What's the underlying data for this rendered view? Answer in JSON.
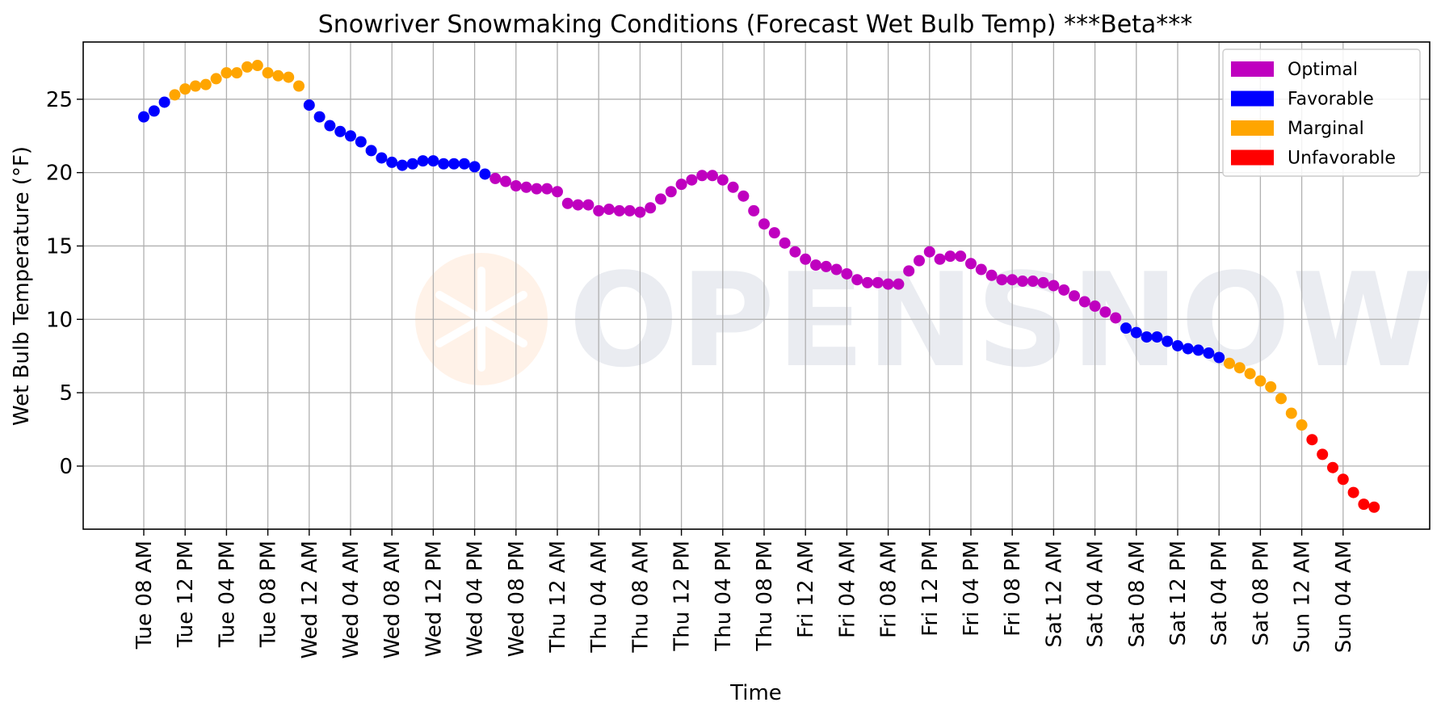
{
  "chart_data": {
    "type": "scatter",
    "title": "Snowriver Snowmaking Conditions (Forecast Wet Bulb Temp) ***Beta***",
    "xlabel": "Time",
    "ylabel": "Wet Bulb Temperature (°F)",
    "ylim": [
      -4.3,
      28.9
    ],
    "yticks": [
      0,
      5,
      10,
      15,
      20,
      25
    ],
    "grid": true,
    "legend_position": "top-right",
    "watermark": "OPENSNOW",
    "categories": [
      "Optimal",
      "Favorable",
      "Marginal",
      "Unfavorable"
    ],
    "colors": {
      "Optimal": "#bf00bf",
      "Favorable": "#0000ff",
      "Marginal": "#ffa500",
      "Unfavorable": "#ff0000"
    },
    "xtick_labels": [
      "Tue 08 AM",
      "Tue 12 PM",
      "Tue 04 PM",
      "Tue 08 PM",
      "Wed 12 AM",
      "Wed 04 AM",
      "Wed 08 AM",
      "Wed 12 PM",
      "Wed 04 PM",
      "Wed 08 PM",
      "Thu 12 AM",
      "Thu 04 AM",
      "Thu 08 AM",
      "Thu 12 PM",
      "Thu 04 PM",
      "Thu 08 PM",
      "Fri 12 AM",
      "Fri 04 AM",
      "Fri 08 AM",
      "Fri 12 PM",
      "Fri 04 PM",
      "Fri 08 PM",
      "Sat 12 AM",
      "Sat 04 AM",
      "Sat 08 AM",
      "Sat 12 PM",
      "Sat 04 PM",
      "Sat 08 PM",
      "Sun 12 AM",
      "Sun 04 AM"
    ],
    "x_start": "Tue 08 AM",
    "x_step": "1 hour",
    "y": [
      23.8,
      24.2,
      24.8,
      25.3,
      25.7,
      25.9,
      26.0,
      26.4,
      26.8,
      26.8,
      27.2,
      27.3,
      26.8,
      26.6,
      26.5,
      25.9,
      24.6,
      23.8,
      23.2,
      22.8,
      22.5,
      22.1,
      21.5,
      21.0,
      20.7,
      20.5,
      20.6,
      20.8,
      20.8,
      20.6,
      20.6,
      20.6,
      20.4,
      19.9,
      19.6,
      19.4,
      19.1,
      19.0,
      18.9,
      18.9,
      18.7,
      17.9,
      17.8,
      17.8,
      17.4,
      17.5,
      17.4,
      17.4,
      17.3,
      17.6,
      18.2,
      18.7,
      19.2,
      19.5,
      19.8,
      19.8,
      19.5,
      19.0,
      18.4,
      17.4,
      16.5,
      15.9,
      15.2,
      14.6,
      14.1,
      13.7,
      13.6,
      13.4,
      13.1,
      12.7,
      12.5,
      12.5,
      12.4,
      12.4,
      13.3,
      14.0,
      14.6,
      14.1,
      14.3,
      14.3,
      13.8,
      13.4,
      13.0,
      12.7,
      12.7,
      12.6,
      12.6,
      12.5,
      12.3,
      12.0,
      11.6,
      11.2,
      10.9,
      10.5,
      10.1,
      9.4,
      9.1,
      8.8,
      8.8,
      8.5,
      8.2,
      8.0,
      7.9,
      7.7,
      7.4,
      7.0,
      6.7,
      6.3,
      5.8,
      5.4,
      4.6,
      3.6,
      2.8,
      1.8,
      0.8,
      -0.1,
      -0.9,
      -1.8,
      -2.6,
      -2.8
    ],
    "condition": [
      "Favorable",
      "Favorable",
      "Favorable",
      "Marginal",
      "Marginal",
      "Marginal",
      "Marginal",
      "Marginal",
      "Marginal",
      "Marginal",
      "Marginal",
      "Marginal",
      "Marginal",
      "Marginal",
      "Marginal",
      "Marginal",
      "Favorable",
      "Favorable",
      "Favorable",
      "Favorable",
      "Favorable",
      "Favorable",
      "Favorable",
      "Favorable",
      "Favorable",
      "Favorable",
      "Favorable",
      "Favorable",
      "Favorable",
      "Favorable",
      "Favorable",
      "Favorable",
      "Favorable",
      "Favorable",
      "Optimal",
      "Optimal",
      "Optimal",
      "Optimal",
      "Optimal",
      "Optimal",
      "Optimal",
      "Optimal",
      "Optimal",
      "Optimal",
      "Optimal",
      "Optimal",
      "Optimal",
      "Optimal",
      "Optimal",
      "Optimal",
      "Optimal",
      "Optimal",
      "Optimal",
      "Optimal",
      "Optimal",
      "Optimal",
      "Optimal",
      "Optimal",
      "Optimal",
      "Optimal",
      "Optimal",
      "Optimal",
      "Optimal",
      "Optimal",
      "Optimal",
      "Optimal",
      "Optimal",
      "Optimal",
      "Optimal",
      "Optimal",
      "Optimal",
      "Optimal",
      "Optimal",
      "Optimal",
      "Optimal",
      "Optimal",
      "Optimal",
      "Optimal",
      "Optimal",
      "Optimal",
      "Optimal",
      "Optimal",
      "Optimal",
      "Optimal",
      "Optimal",
      "Optimal",
      "Optimal",
      "Optimal",
      "Optimal",
      "Optimal",
      "Optimal",
      "Optimal",
      "Optimal",
      "Optimal",
      "Optimal",
      "Favorable",
      "Favorable",
      "Favorable",
      "Favorable",
      "Favorable",
      "Favorable",
      "Favorable",
      "Favorable",
      "Favorable",
      "Favorable",
      "Marginal",
      "Marginal",
      "Marginal",
      "Marginal",
      "Marginal",
      "Marginal",
      "Marginal",
      "Marginal",
      "Unfavorable",
      "Unfavorable",
      "Unfavorable",
      "Unfavorable",
      "Unfavorable",
      "Unfavorable",
      "Unfavorable"
    ]
  }
}
